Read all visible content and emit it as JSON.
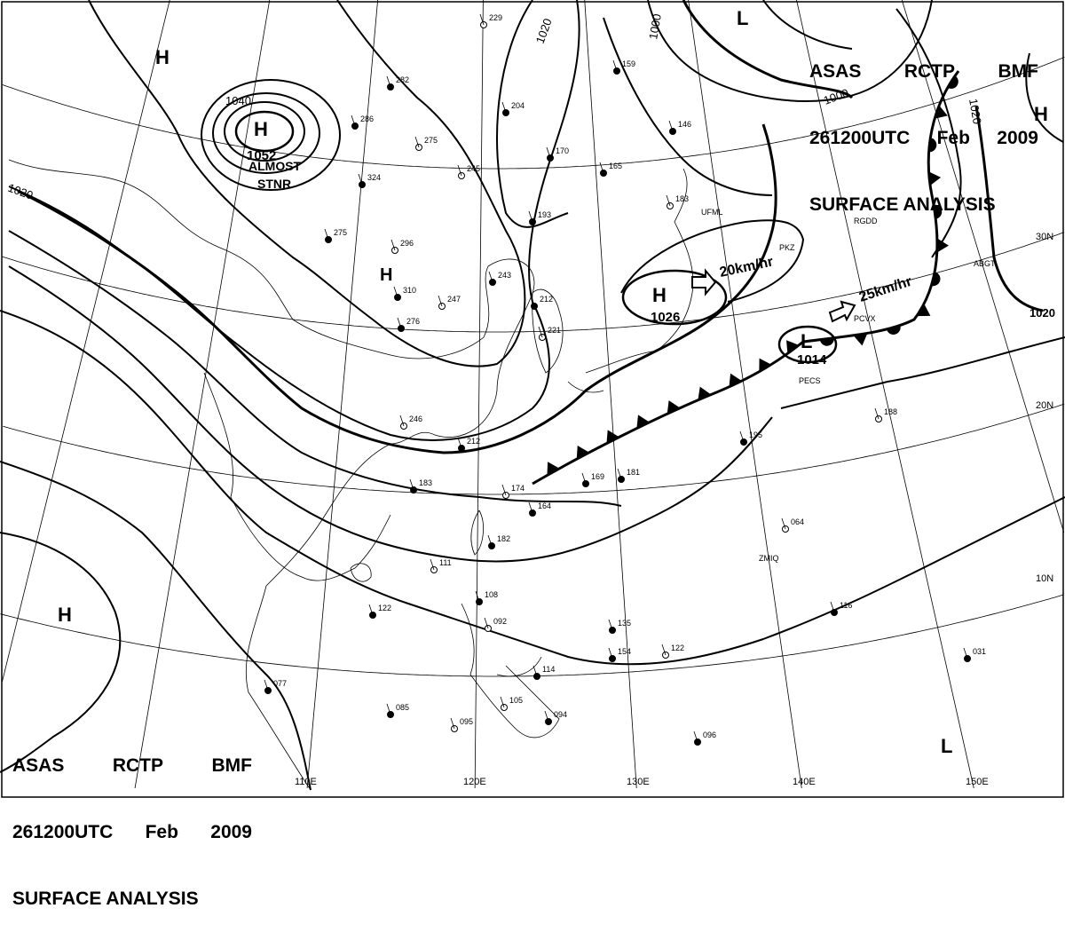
{
  "title": {
    "line1": [
      "ASAS",
      "RCTP",
      "BMF"
    ],
    "line2": [
      "261200UTC",
      "Feb",
      "2009"
    ],
    "line3": "SURFACE ANALYSIS"
  },
  "longitude_labels": [
    "110E",
    "120E",
    "130E",
    "140E",
    "150E"
  ],
  "latitude_labels": [
    "30N",
    "20N",
    "10N"
  ],
  "pressure_centers": [
    {
      "type": "H",
      "value": "1052",
      "note": "ALMOST STNR"
    },
    {
      "type": "H",
      "value": "1026",
      "motion": "20km/hr"
    },
    {
      "type": "L",
      "value": "1014",
      "motion": "25km/hr"
    },
    {
      "type": "H"
    },
    {
      "type": "H"
    },
    {
      "type": "H"
    },
    {
      "type": "L"
    },
    {
      "type": "L"
    },
    {
      "type": "H"
    }
  ],
  "isobar_labels": [
    "1040",
    "1020",
    "1020",
    "1000",
    "1000",
    "1020",
    "1020"
  ],
  "station_ids": [
    "UFML",
    "PKZ",
    "PCVX",
    "PECS",
    "RGDD",
    "ZMIQ",
    "ABGT"
  ],
  "station_values": [
    "229",
    "282",
    "286",
    "275",
    "324",
    "275",
    "296",
    "310",
    "276",
    "247",
    "243",
    "212",
    "221",
    "204",
    "170",
    "245",
    "165",
    "193",
    "183",
    "159",
    "146",
    "246",
    "212",
    "183",
    "174",
    "164",
    "182",
    "111",
    "122",
    "108",
    "092",
    "135",
    "114",
    "105",
    "094",
    "085",
    "095",
    "077",
    "195",
    "188",
    "154",
    "116",
    "122",
    "031",
    "096",
    "064",
    "181",
    "169"
  ],
  "colors": {
    "line": "#000000",
    "background": "#ffffff"
  }
}
